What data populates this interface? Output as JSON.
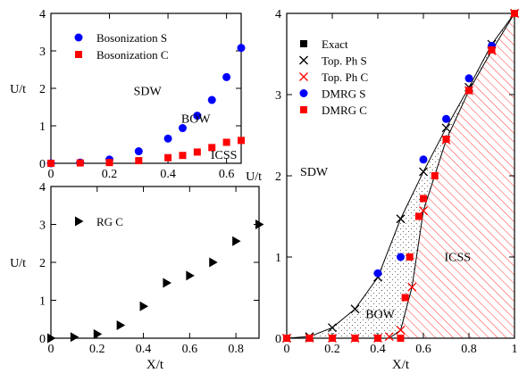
{
  "colors": {
    "blue": "#0000ff",
    "red": "#ff0000",
    "black": "#000000"
  },
  "chart_data": [
    {
      "id": "top_left",
      "type": "scatter",
      "xlabel": "",
      "ylabel": "U/t",
      "xlim": [
        0,
        0.65
      ],
      "ylim": [
        0,
        4
      ],
      "xticks": [
        0,
        0.2,
        0.4,
        0.6
      ],
      "xticklabels": [
        "0",
        "0.2",
        "0.4",
        "0.6"
      ],
      "yticks": [
        0,
        1,
        2,
        3,
        4
      ],
      "yticklabels": [
        "0",
        "1",
        "2",
        "3",
        "4"
      ],
      "legend": "top-left",
      "series": [
        {
          "name": "Bosonization S",
          "marker": "circle",
          "color": "#0000ff",
          "x": [
            0,
            0.1,
            0.2,
            0.3,
            0.4,
            0.45,
            0.5,
            0.55,
            0.6,
            0.65
          ],
          "y": [
            0,
            0.02,
            0.1,
            0.32,
            0.66,
            0.94,
            1.27,
            1.69,
            2.3,
            3.08
          ]
        },
        {
          "name": "Bosonization C",
          "marker": "square",
          "color": "#ff0000",
          "x": [
            0,
            0.1,
            0.2,
            0.3,
            0.4,
            0.45,
            0.5,
            0.55,
            0.6,
            0.65
          ],
          "y": [
            0,
            0.01,
            0.02,
            0.07,
            0.15,
            0.21,
            0.3,
            0.42,
            0.56,
            0.61
          ]
        }
      ],
      "annotations": [
        {
          "text": "SDW",
          "x": 0.33,
          "y": 1.82
        },
        {
          "text": "BOW",
          "x": 0.495,
          "y": 1.08
        },
        {
          "text": "ICSS",
          "x": 0.591,
          "y": 0.12
        }
      ]
    },
    {
      "id": "bottom_left",
      "type": "scatter",
      "xlabel": "X/t",
      "ylabel": "U/t",
      "xlim": [
        0,
        0.9
      ],
      "ylim": [
        0,
        4
      ],
      "xticks": [
        0,
        0.2,
        0.4,
        0.6,
        0.8
      ],
      "xticklabels": [
        "0",
        "0.2",
        "0.4",
        "0.6",
        "0.8"
      ],
      "yticks": [
        0,
        1,
        2,
        3,
        4
      ],
      "yticklabels": [
        "0",
        "1",
        "2",
        "3",
        "4"
      ],
      "legend": "top-left",
      "series": [
        {
          "name": "RG C",
          "marker": "triangle-right",
          "color": "#000000",
          "x": [
            0,
            0.1,
            0.2,
            0.3,
            0.4,
            0.5,
            0.6,
            0.7,
            0.8,
            0.9
          ],
          "y": [
            0,
            0.03,
            0.11,
            0.34,
            0.84,
            1.46,
            1.65,
            2.0,
            2.56,
            3.0
          ]
        }
      ],
      "annotations": []
    },
    {
      "id": "right",
      "type": "scatter",
      "xlabel": "X/t",
      "ylabel": "U/t",
      "xlim": [
        0,
        1
      ],
      "ylim": [
        0,
        4
      ],
      "xticks": [
        0,
        0.2,
        0.4,
        0.6,
        0.8,
        1
      ],
      "xticklabels": [
        "0",
        "0.2",
        "0.4",
        "0.6",
        "0.8",
        "1"
      ],
      "yticks": [
        0,
        1,
        2,
        3,
        4
      ],
      "yticklabels": [
        "0",
        "1",
        "2",
        "3",
        "4"
      ],
      "legend": "top-left",
      "series": [
        {
          "name": "Exact",
          "marker": "square",
          "color": "#000000",
          "x": [
            0,
            1
          ],
          "y": [
            0,
            4
          ]
        },
        {
          "name": "Top. Ph S",
          "marker": "x",
          "color": "#000000",
          "x": [
            0,
            0.1,
            0.2,
            0.3,
            0.4,
            0.5,
            0.6,
            0.7,
            0.8,
            0.9,
            1.0
          ],
          "y": [
            0,
            0.02,
            0.13,
            0.36,
            0.75,
            1.47,
            2.05,
            2.59,
            3.09,
            3.62,
            4
          ]
        },
        {
          "name": "Top. Ph C",
          "marker": "x",
          "color": "#ff0000",
          "x": [
            0,
            0.1,
            0.2,
            0.3,
            0.4,
            0.45,
            0.5,
            0.55,
            0.6,
            0.7,
            0.8,
            0.9,
            1.0
          ],
          "y": [
            0,
            0,
            0,
            0,
            0,
            0.02,
            0.1,
            0.63,
            1.57,
            2.44,
            3.05,
            3.54,
            4
          ]
        },
        {
          "name": "DMRG S",
          "marker": "circle",
          "color": "#0000ff",
          "x": [
            0.4,
            0.5,
            0.6,
            0.7,
            0.8,
            0.9
          ],
          "y": [
            0.8,
            1.0,
            2.2,
            2.7,
            3.2,
            3.6
          ]
        },
        {
          "name": "DMRG C",
          "marker": "square",
          "color": "#ff0000",
          "x": [
            0,
            0.1,
            0.2,
            0.3,
            0.4,
            0.5,
            0.52,
            0.54,
            0.58,
            0.6,
            0.65,
            0.7,
            0.8,
            0.9,
            1.0
          ],
          "y": [
            0,
            0,
            0,
            0,
            0,
            0,
            0.5,
            1.0,
            1.5,
            1.72,
            2.0,
            2.45,
            3.05,
            3.55,
            4
          ]
        }
      ],
      "annotations": [
        {
          "text": "SDW",
          "x": 0.12,
          "y": 2.0
        },
        {
          "text": "BOW",
          "x": 0.41,
          "y": 0.25
        },
        {
          "text": "ICSS",
          "x": 0.75,
          "y": 0.95
        }
      ],
      "phase_boundaries": {
        "upper": {
          "x": [
            0,
            0.1,
            0.2,
            0.3,
            0.4,
            0.5,
            0.6,
            0.7,
            0.8,
            0.9,
            1.0
          ],
          "y": [
            0,
            0.02,
            0.13,
            0.36,
            0.75,
            1.47,
            2.05,
            2.59,
            3.09,
            3.62,
            4
          ]
        },
        "lower": {
          "x": [
            0,
            0.45,
            0.5,
            0.55,
            0.6,
            0.7,
            0.8,
            0.9,
            1.0
          ],
          "y": [
            0,
            0,
            0.1,
            0.63,
            1.57,
            2.44,
            3.05,
            3.54,
            4
          ]
        }
      },
      "region_fills": [
        {
          "name": "BOW",
          "pattern": "dots"
        },
        {
          "name": "ICSS",
          "pattern": "red-hatch"
        }
      ]
    }
  ]
}
